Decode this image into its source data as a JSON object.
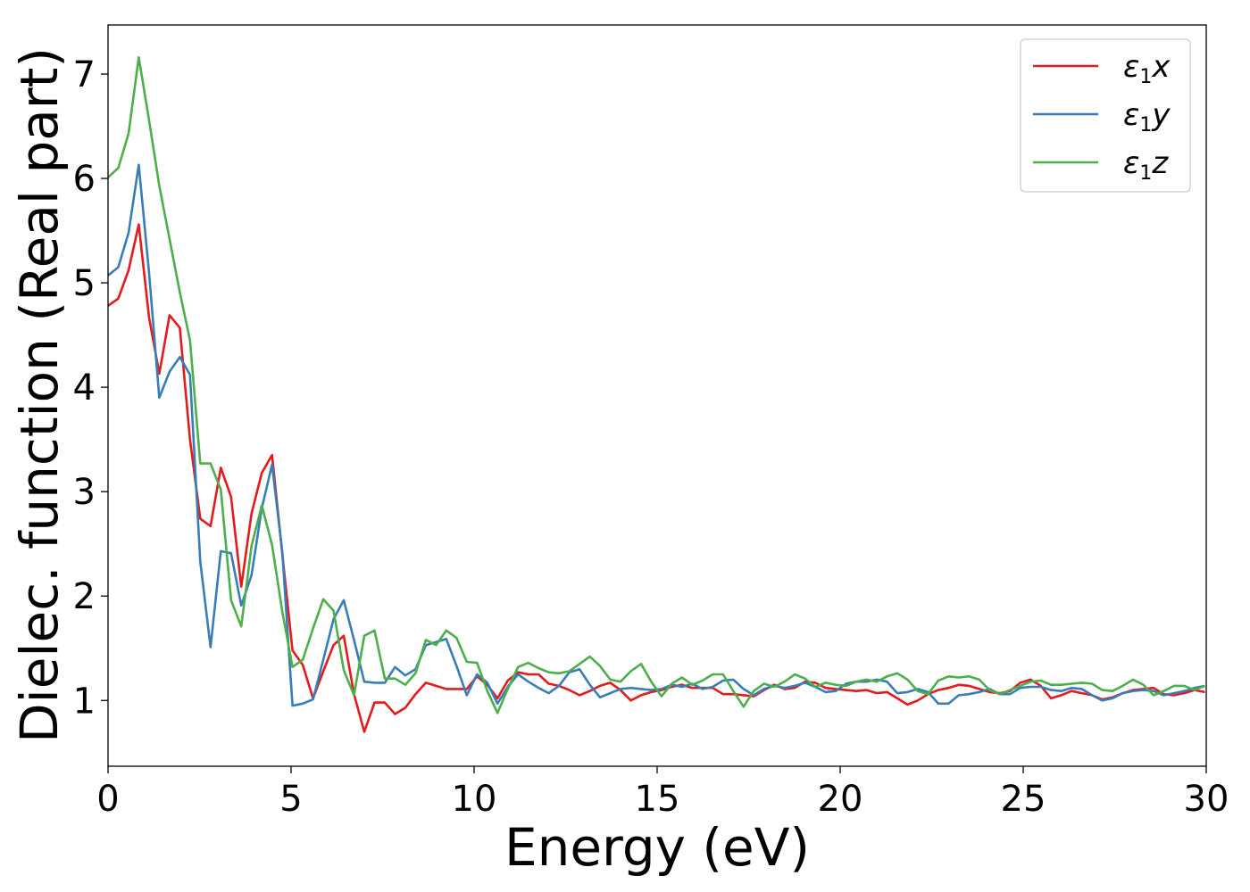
{
  "chart_data": {
    "type": "line",
    "xlabel": "Energy (eV)",
    "ylabel": "Dielec. function (Real part)",
    "xlim": [
      0,
      30
    ],
    "ylim": [
      0.37,
      7.47
    ],
    "xticks": [
      0,
      5,
      10,
      15,
      20,
      25,
      30
    ],
    "yticks": [
      1,
      2,
      3,
      4,
      5,
      6,
      7
    ],
    "grid": false,
    "legend_position": "top-right",
    "series": [
      {
        "name": "ε1x",
        "legend": {
          "base": "ε",
          "sub": "1",
          "var": "x"
        },
        "color": "#e41a1c",
        "x": [
          0,
          0.28,
          0.56,
          0.84,
          1.12,
          1.4,
          1.68,
          1.96,
          2.24,
          2.52,
          2.8,
          3.08,
          3.36,
          3.64,
          3.92,
          4.2,
          4.48,
          4.76,
          5.04,
          5.32,
          5.6,
          5.88,
          6.16,
          6.44,
          6.72,
          7.0,
          7.28,
          7.56,
          7.84,
          8.12,
          8.4,
          8.68,
          8.96,
          9.24,
          9.52,
          9.8,
          10.08,
          10.36,
          10.64,
          10.92,
          11.2,
          11.48,
          11.76,
          12.04,
          12.32,
          12.6,
          12.88,
          13.16,
          13.44,
          13.72,
          14.0,
          14.28,
          14.56,
          14.84,
          15.12,
          15.4,
          15.68,
          15.96,
          16.24,
          16.52,
          16.8,
          17.08,
          17.36,
          17.64,
          17.92,
          18.2,
          18.48,
          18.76,
          19.04,
          19.32,
          19.6,
          19.88,
          20.16,
          20.44,
          20.72,
          21.0,
          21.28,
          21.56,
          21.84,
          22.12,
          22.4,
          22.68,
          22.96,
          23.24,
          23.52,
          23.8,
          24.08,
          24.36,
          24.64,
          24.92,
          25.2,
          25.48,
          25.76,
          26.04,
          26.32,
          26.6,
          26.88,
          27.16,
          27.44,
          27.72,
          28.0,
          28.28,
          28.56,
          28.84,
          29.12,
          29.4,
          29.68,
          29.96
        ],
        "y": [
          4.78,
          4.85,
          5.12,
          5.56,
          4.67,
          4.13,
          4.69,
          4.57,
          3.5,
          2.74,
          2.67,
          3.23,
          2.95,
          2.09,
          2.79,
          3.18,
          3.35,
          2.4,
          1.48,
          1.34,
          1.02,
          1.28,
          1.53,
          1.62,
          1.06,
          0.7,
          0.98,
          0.98,
          0.87,
          0.93,
          1.06,
          1.17,
          1.14,
          1.11,
          1.11,
          1.11,
          1.23,
          1.15,
          1.02,
          1.19,
          1.27,
          1.25,
          1.25,
          1.16,
          1.14,
          1.1,
          1.05,
          1.09,
          1.14,
          1.17,
          1.1,
          1.0,
          1.05,
          1.08,
          1.1,
          1.13,
          1.15,
          1.12,
          1.12,
          1.12,
          1.06,
          1.06,
          1.05,
          1.04,
          1.1,
          1.15,
          1.11,
          1.12,
          1.18,
          1.17,
          1.12,
          1.11,
          1.1,
          1.09,
          1.1,
          1.07,
          1.08,
          1.02,
          0.96,
          1.0,
          1.06,
          1.1,
          1.12,
          1.15,
          1.14,
          1.11,
          1.08,
          1.07,
          1.09,
          1.17,
          1.2,
          1.14,
          1.02,
          1.05,
          1.09,
          1.07,
          1.05,
          1.01,
          1.03,
          1.07,
          1.1,
          1.11,
          1.12,
          1.06,
          1.05,
          1.07,
          1.1,
          1.08
        ]
      },
      {
        "name": "ε1y",
        "legend": {
          "base": "ε",
          "sub": "1",
          "var": "y"
        },
        "color": "#377eb8",
        "x": [
          0,
          0.28,
          0.56,
          0.84,
          1.12,
          1.4,
          1.68,
          1.96,
          2.24,
          2.52,
          2.8,
          3.08,
          3.36,
          3.64,
          3.92,
          4.2,
          4.48,
          4.76,
          5.04,
          5.32,
          5.6,
          5.88,
          6.16,
          6.44,
          6.72,
          7.0,
          7.28,
          7.56,
          7.84,
          8.12,
          8.4,
          8.68,
          8.96,
          9.24,
          9.52,
          9.8,
          10.08,
          10.36,
          10.64,
          10.92,
          11.2,
          11.48,
          11.76,
          12.04,
          12.32,
          12.6,
          12.88,
          13.16,
          13.44,
          13.72,
          14.0,
          14.28,
          14.56,
          14.84,
          15.12,
          15.4,
          15.68,
          15.96,
          16.24,
          16.52,
          16.8,
          17.08,
          17.36,
          17.64,
          17.92,
          18.2,
          18.48,
          18.76,
          19.04,
          19.32,
          19.6,
          19.88,
          20.16,
          20.44,
          20.72,
          21.0,
          21.28,
          21.56,
          21.84,
          22.12,
          22.4,
          22.68,
          22.96,
          23.24,
          23.52,
          23.8,
          24.08,
          24.36,
          24.64,
          24.92,
          25.2,
          25.48,
          25.76,
          26.04,
          26.32,
          26.6,
          26.88,
          27.16,
          27.44,
          27.72,
          28.0,
          28.28,
          28.56,
          28.84,
          29.12,
          29.4,
          29.68,
          29.96
        ],
        "y": [
          5.07,
          5.15,
          5.48,
          6.13,
          5.1,
          3.9,
          4.15,
          4.29,
          4.12,
          2.33,
          1.51,
          2.43,
          2.41,
          1.91,
          2.2,
          2.84,
          3.26,
          2.42,
          0.95,
          0.97,
          1.01,
          1.39,
          1.78,
          1.96,
          1.58,
          1.18,
          1.17,
          1.17,
          1.32,
          1.24,
          1.3,
          1.53,
          1.56,
          1.59,
          1.33,
          1.05,
          1.25,
          1.17,
          0.97,
          1.13,
          1.25,
          1.18,
          1.12,
          1.07,
          1.14,
          1.27,
          1.3,
          1.15,
          1.03,
          1.07,
          1.11,
          1.12,
          1.11,
          1.1,
          1.11,
          1.15,
          1.13,
          1.16,
          1.11,
          1.13,
          1.19,
          1.2,
          1.11,
          1.05,
          1.11,
          1.14,
          1.12,
          1.14,
          1.17,
          1.13,
          1.08,
          1.09,
          1.16,
          1.18,
          1.18,
          1.2,
          1.18,
          1.07,
          1.08,
          1.11,
          1.08,
          0.97,
          0.97,
          1.05,
          1.06,
          1.08,
          1.11,
          1.06,
          1.06,
          1.12,
          1.13,
          1.13,
          1.1,
          1.09,
          1.12,
          1.11,
          1.05,
          1.0,
          1.02,
          1.07,
          1.09,
          1.1,
          1.09,
          1.05,
          1.07,
          1.09,
          1.12,
          1.14
        ]
      },
      {
        "name": "ε1z",
        "legend": {
          "base": "ε",
          "sub": "1",
          "var": "z"
        },
        "color": "#4daf4a",
        "x": [
          0,
          0.28,
          0.56,
          0.84,
          1.12,
          1.4,
          1.68,
          1.96,
          2.24,
          2.52,
          2.8,
          3.08,
          3.36,
          3.64,
          3.92,
          4.2,
          4.48,
          4.76,
          5.04,
          5.32,
          5.6,
          5.88,
          6.16,
          6.44,
          6.72,
          7.0,
          7.28,
          7.56,
          7.84,
          8.12,
          8.4,
          8.68,
          8.96,
          9.24,
          9.52,
          9.8,
          10.08,
          10.36,
          10.64,
          10.92,
          11.2,
          11.48,
          11.76,
          12.04,
          12.32,
          12.6,
          12.88,
          13.16,
          13.44,
          13.72,
          14.0,
          14.28,
          14.56,
          14.84,
          15.12,
          15.4,
          15.68,
          15.96,
          16.24,
          16.52,
          16.8,
          17.08,
          17.36,
          17.64,
          17.92,
          18.2,
          18.48,
          18.76,
          19.04,
          19.32,
          19.6,
          19.88,
          20.16,
          20.44,
          20.72,
          21.0,
          21.28,
          21.56,
          21.84,
          22.12,
          22.4,
          22.68,
          22.96,
          23.24,
          23.52,
          23.8,
          24.08,
          24.36,
          24.64,
          24.92,
          25.2,
          25.48,
          25.76,
          26.04,
          26.32,
          26.6,
          26.88,
          27.16,
          27.44,
          27.72,
          28.0,
          28.28,
          28.56,
          28.84,
          29.12,
          29.4,
          29.68,
          29.96
        ],
        "y": [
          6.01,
          6.1,
          6.43,
          7.16,
          6.56,
          5.93,
          5.42,
          4.91,
          4.45,
          3.27,
          3.27,
          3.02,
          1.96,
          1.71,
          2.48,
          2.87,
          2.49,
          1.85,
          1.32,
          1.39,
          1.69,
          1.97,
          1.86,
          1.29,
          1.05,
          1.62,
          1.67,
          1.21,
          1.21,
          1.15,
          1.26,
          1.58,
          1.53,
          1.67,
          1.6,
          1.37,
          1.36,
          1.09,
          0.88,
          1.11,
          1.32,
          1.36,
          1.31,
          1.27,
          1.26,
          1.28,
          1.35,
          1.42,
          1.33,
          1.2,
          1.18,
          1.28,
          1.35,
          1.18,
          1.04,
          1.16,
          1.22,
          1.15,
          1.19,
          1.25,
          1.25,
          1.09,
          0.94,
          1.09,
          1.16,
          1.13,
          1.18,
          1.25,
          1.21,
          1.13,
          1.17,
          1.15,
          1.14,
          1.18,
          1.2,
          1.18,
          1.23,
          1.26,
          1.2,
          1.09,
          1.06,
          1.19,
          1.23,
          1.22,
          1.23,
          1.2,
          1.1,
          1.06,
          1.1,
          1.14,
          1.18,
          1.19,
          1.15,
          1.15,
          1.16,
          1.17,
          1.16,
          1.1,
          1.09,
          1.14,
          1.2,
          1.15,
          1.05,
          1.09,
          1.14,
          1.14,
          1.1,
          1.14
        ]
      }
    ]
  }
}
